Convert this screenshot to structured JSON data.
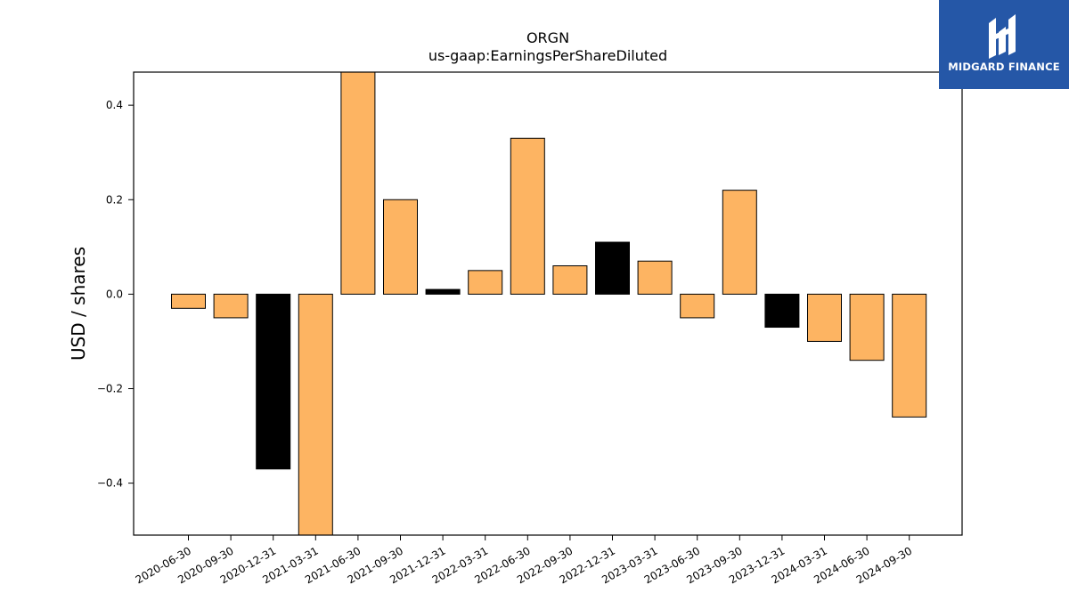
{
  "logo": {
    "text": "MIDGARD FINANCE",
    "background": "#2557a7"
  },
  "chart_data": {
    "type": "bar",
    "title": "ORGN",
    "subtitle": "us-gaap:EarningsPerShareDiluted",
    "xlabel": "",
    "ylabel": "USD / shares",
    "ylim": [
      -0.51,
      0.47
    ],
    "yticks": [
      -0.4,
      -0.2,
      0.0,
      0.2,
      0.4
    ],
    "ytick_labels": [
      "−0.4",
      "−0.2",
      "0.0",
      "0.2",
      "0.4"
    ],
    "grid": false,
    "legend": "none",
    "categories": [
      "2020-06-30",
      "2020-09-30",
      "2020-12-31",
      "2021-03-31",
      "2021-06-30",
      "2021-09-30",
      "2021-12-31",
      "2022-03-31",
      "2022-06-30",
      "2022-09-30",
      "2022-12-31",
      "2023-03-31",
      "2023-06-30",
      "2023-09-30",
      "2023-12-31",
      "2024-03-31",
      "2024-06-30",
      "2024-09-30"
    ],
    "values": [
      -0.03,
      -0.05,
      -0.37,
      -0.51,
      0.47,
      0.2,
      0.01,
      0.05,
      0.33,
      0.06,
      0.11,
      0.07,
      -0.05,
      0.22,
      -0.07,
      -0.1,
      -0.14,
      -0.26
    ],
    "bar_colors": [
      "#fdb462",
      "#fdb462",
      "#000000",
      "#fdb462",
      "#fdb462",
      "#fdb462",
      "#000000",
      "#fdb462",
      "#fdb462",
      "#fdb462",
      "#000000",
      "#fdb462",
      "#fdb462",
      "#fdb462",
      "#000000",
      "#fdb462",
      "#fdb462",
      "#fdb462"
    ]
  }
}
